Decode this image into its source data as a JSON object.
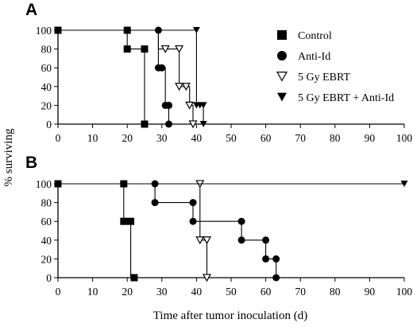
{
  "chart_data": [
    {
      "panel_label": "A",
      "type": "line",
      "step": true,
      "xlim": [
        0,
        100
      ],
      "ylim": [
        0,
        100
      ],
      "xticks": [
        "0",
        "10",
        "20",
        "30",
        "40",
        "50",
        "60",
        "70",
        "80",
        "90",
        "100"
      ],
      "yticks": [
        "0",
        "20",
        "40",
        "60",
        "80",
        "100"
      ],
      "legend_position": "top-right",
      "series": [
        {
          "name": "Control",
          "marker": "square",
          "points": [
            [
              0,
              100
            ],
            [
              20,
              100
            ],
            [
              20,
              80
            ],
            [
              25,
              80
            ],
            [
              25,
              0
            ]
          ],
          "markers": [
            [
              0,
              100
            ],
            [
              20,
              100
            ],
            [
              20,
              80
            ],
            [
              25,
              80
            ],
            [
              25,
              0
            ]
          ]
        },
        {
          "name": "Anti-Id",
          "marker": "circle",
          "points": [
            [
              0,
              100
            ],
            [
              29,
              100
            ],
            [
              29,
              60
            ],
            [
              31,
              60
            ],
            [
              31,
              20
            ],
            [
              32,
              20
            ],
            [
              32,
              0
            ]
          ],
          "markers": [
            [
              29,
              100
            ],
            [
              29,
              60
            ],
            [
              30,
              60
            ],
            [
              31,
              20
            ],
            [
              32,
              20
            ],
            [
              32,
              0
            ]
          ]
        },
        {
          "name": "5 Gy EBRT",
          "marker": "triangle-down-open",
          "points": [
            [
              0,
              100
            ],
            [
              29,
              100
            ],
            [
              29,
              80
            ],
            [
              35,
              80
            ],
            [
              35,
              40
            ],
            [
              38,
              40
            ],
            [
              38,
              20
            ],
            [
              39,
              20
            ],
            [
              39,
              0
            ]
          ],
          "markers": [
            [
              31,
              80
            ],
            [
              35,
              80
            ],
            [
              35,
              40
            ],
            [
              37,
              40
            ],
            [
              38,
              20
            ],
            [
              39,
              0
            ]
          ]
        },
        {
          "name": "5 Gy EBRT + Anti-Id",
          "marker": "triangle-down",
          "points": [
            [
              0,
              100
            ],
            [
              40,
              100
            ],
            [
              40,
              20
            ],
            [
              42,
              20
            ],
            [
              42,
              0
            ],
            [
              100,
              0
            ]
          ],
          "markers": [
            [
              40,
              100
            ],
            [
              40,
              20
            ],
            [
              41,
              20
            ],
            [
              42,
              20
            ],
            [
              42,
              0
            ]
          ]
        }
      ]
    },
    {
      "panel_label": "B",
      "type": "line",
      "step": true,
      "xlim": [
        0,
        100
      ],
      "ylim": [
        0,
        100
      ],
      "xticks": [
        "0",
        "10",
        "20",
        "30",
        "40",
        "50",
        "60",
        "70",
        "80",
        "90",
        "100"
      ],
      "yticks": [
        "0",
        "20",
        "40",
        "60",
        "80",
        "100"
      ],
      "series": [
        {
          "name": "Control",
          "marker": "square",
          "points": [
            [
              0,
              100
            ],
            [
              19,
              100
            ],
            [
              19,
              60
            ],
            [
              21,
              60
            ],
            [
              21,
              0
            ]
          ],
          "markers": [
            [
              0,
              100
            ],
            [
              19,
              100
            ],
            [
              19,
              60
            ],
            [
              21,
              60
            ],
            [
              22,
              0
            ]
          ]
        },
        {
          "name": "Anti-Id",
          "marker": "circle",
          "points": [
            [
              0,
              100
            ],
            [
              28,
              100
            ],
            [
              28,
              80
            ],
            [
              39,
              80
            ],
            [
              39,
              60
            ],
            [
              53,
              60
            ],
            [
              53,
              40
            ],
            [
              60,
              40
            ],
            [
              60,
              20
            ],
            [
              63,
              20
            ],
            [
              63,
              0
            ],
            [
              100,
              0
            ]
          ],
          "markers": [
            [
              28,
              100
            ],
            [
              28,
              80
            ],
            [
              39,
              80
            ],
            [
              39,
              60
            ],
            [
              53,
              60
            ],
            [
              53,
              40
            ],
            [
              60,
              40
            ],
            [
              60,
              20
            ],
            [
              63,
              20
            ],
            [
              63,
              0
            ]
          ]
        },
        {
          "name": "5 Gy EBRT",
          "marker": "triangle-down-open",
          "points": [
            [
              0,
              100
            ],
            [
              41,
              100
            ],
            [
              41,
              40
            ],
            [
              43,
              40
            ],
            [
              43,
              0
            ]
          ],
          "markers": [
            [
              41,
              100
            ],
            [
              41,
              40
            ],
            [
              43,
              40
            ],
            [
              43,
              0
            ]
          ]
        },
        {
          "name": "5 Gy EBRT + Anti-Id",
          "marker": "triangle-down",
          "points": [
            [
              0,
              100
            ],
            [
              100,
              100
            ]
          ],
          "markers": [
            [
              100,
              100
            ]
          ]
        }
      ]
    }
  ],
  "ylabel": "% surviving",
  "xlabel": "Time after tumor inoculation (d)"
}
